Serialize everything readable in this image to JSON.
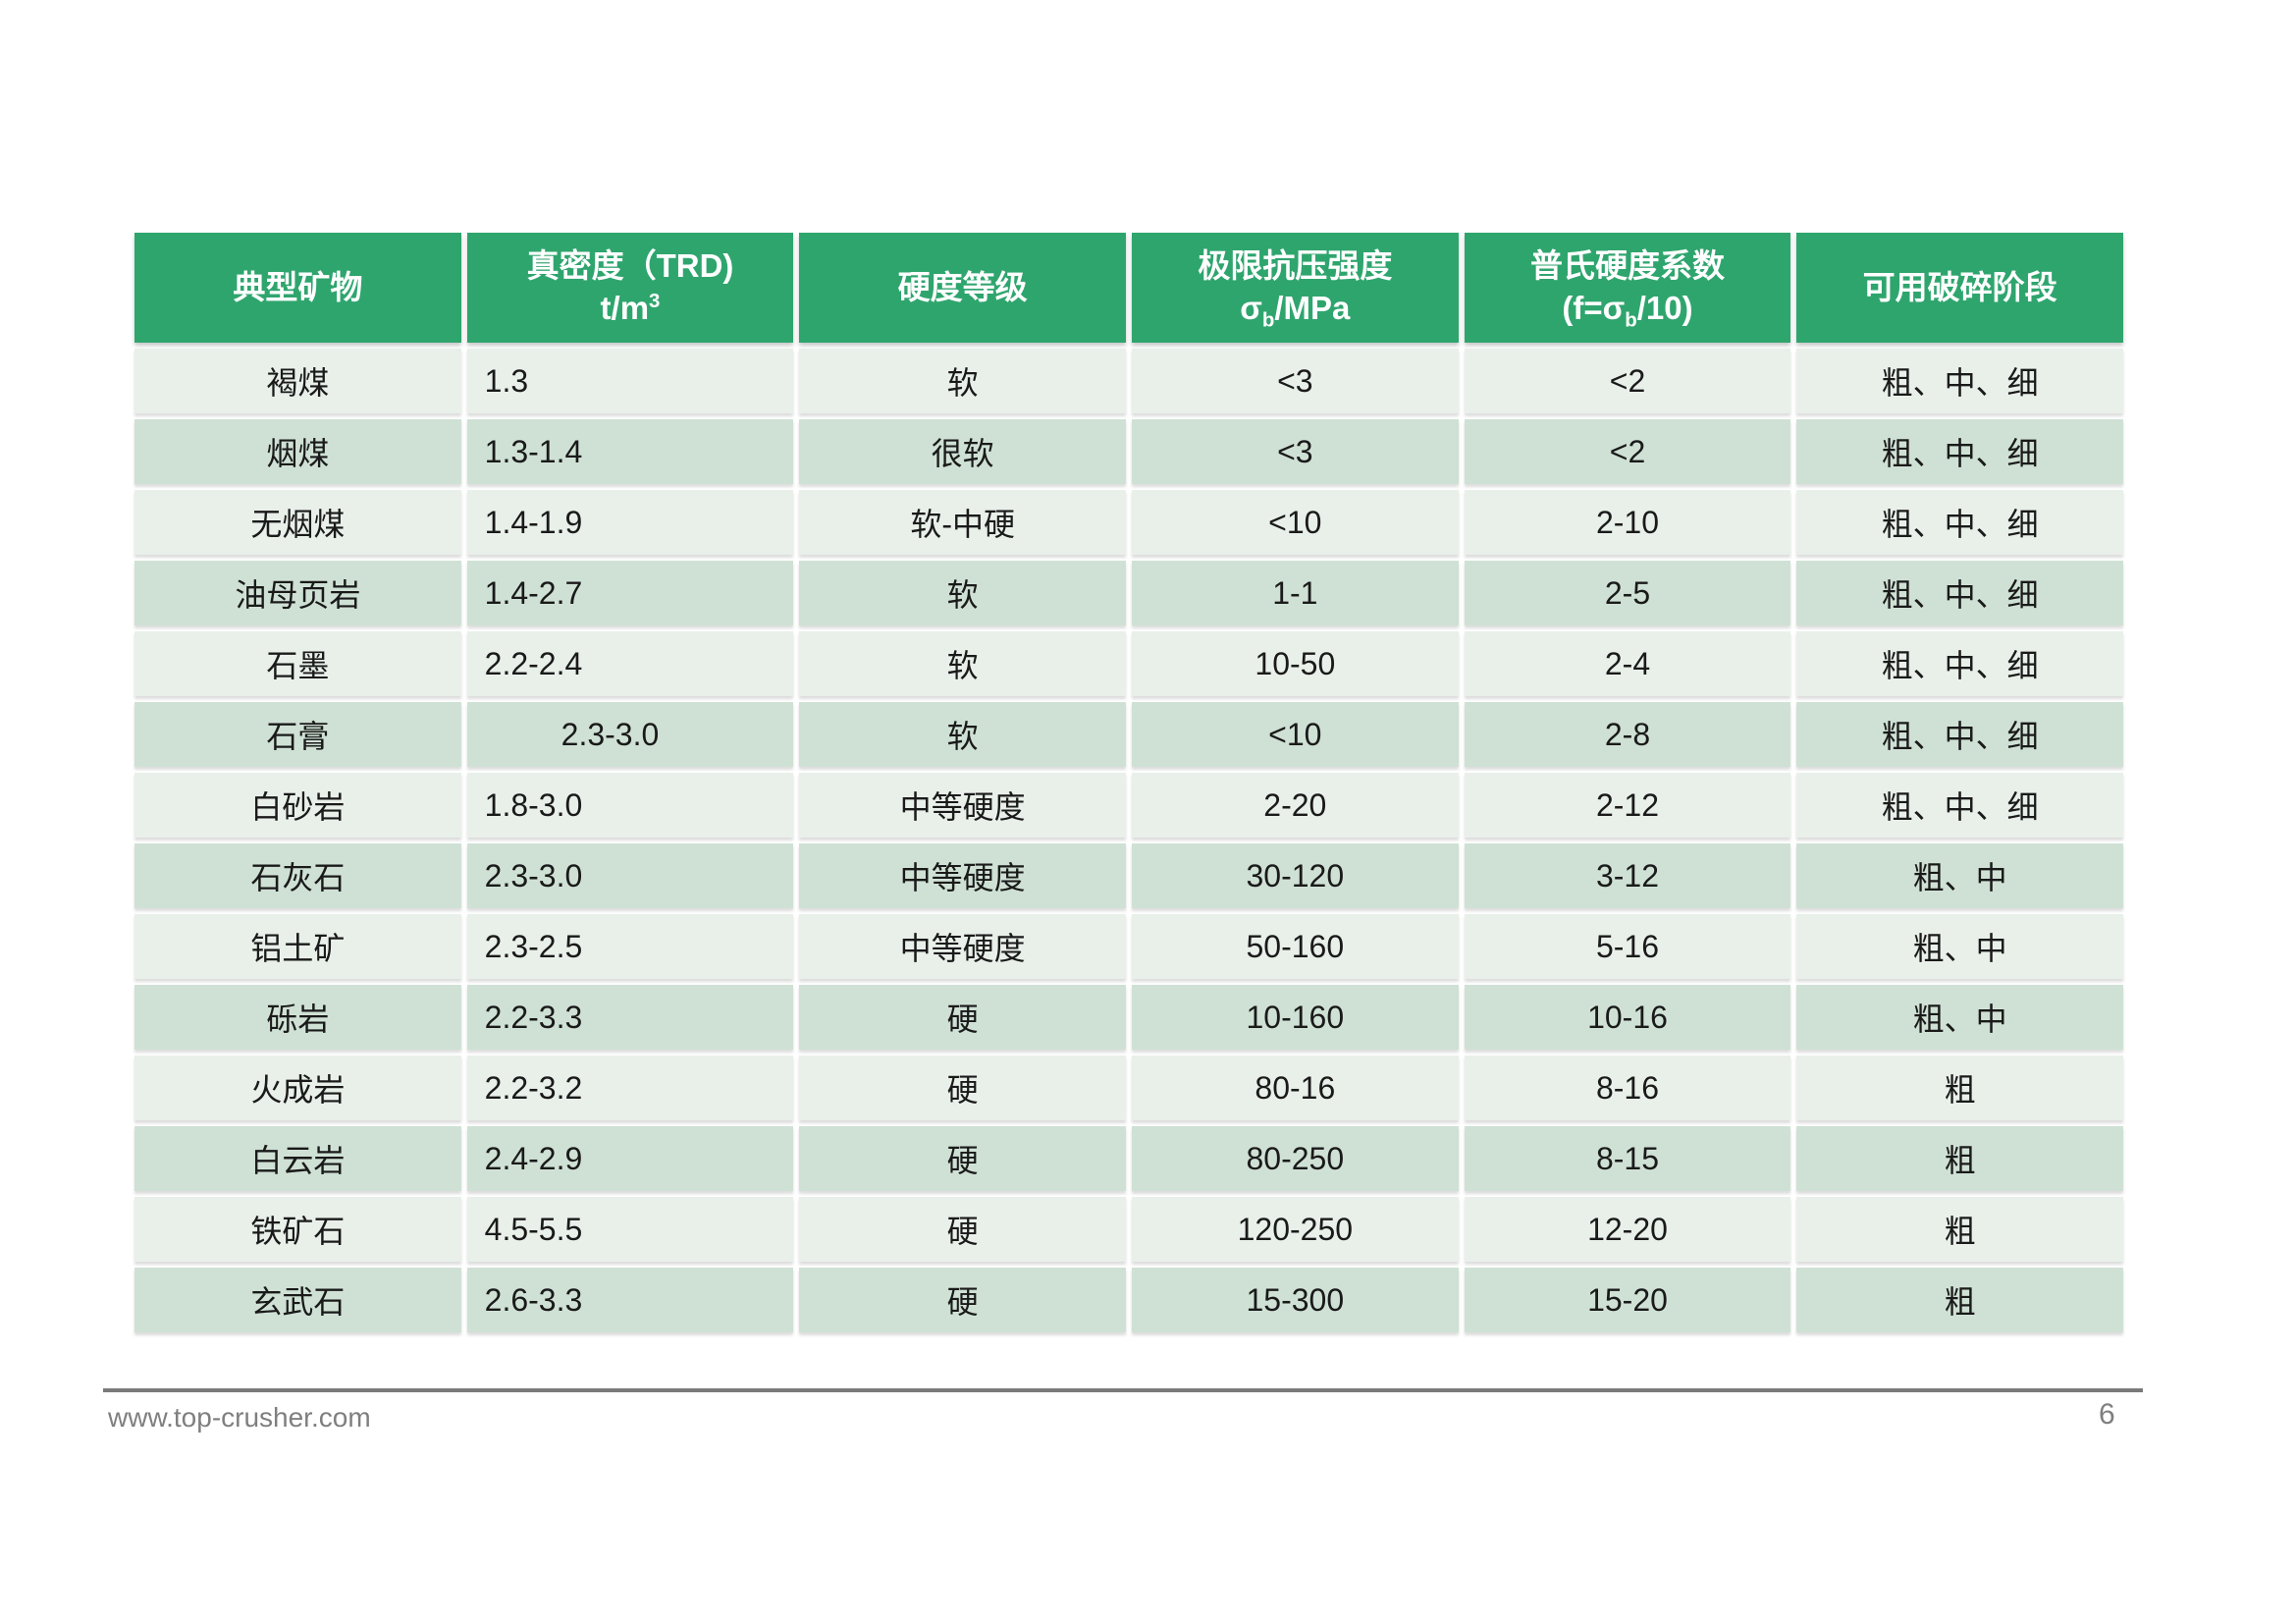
{
  "colors": {
    "header_bg": "#2FA56E",
    "row_dark": "#CFE1D5",
    "row_light": "#E9F0EA",
    "header_text": "#FFFFFF",
    "cell_text": "#1A1A1A",
    "footer_text": "#7F7F7F"
  },
  "footer": {
    "url": "www.top-crusher.com",
    "page_number": "6"
  },
  "table": {
    "header": {
      "col1": "典型矿物",
      "col2_line1": "真密度（TRD)",
      "col2_line2_base": "t/m",
      "col2_line2_sup": "3",
      "col3": "硬度等级",
      "col4_line1": "极限抗压强度",
      "col4_line2_pre": "σ",
      "col4_line2_sub": "b",
      "col4_line2_post": "/MPa",
      "col5_line1": "普氏硬度系数",
      "col5_line2_pre": "(f=σ",
      "col5_line2_sub": "b",
      "col5_line2_post": "/10)",
      "col6": "可用破碎阶段"
    },
    "rows": [
      {
        "mineral": "褐煤",
        "density": "1.3",
        "hardness": "软",
        "strength": "<3",
        "coefficient": "<2",
        "stages": "粗、中、细"
      },
      {
        "mineral": "烟煤",
        "density": "1.3-1.4",
        "hardness": "很软",
        "strength": "<3",
        "coefficient": "<2",
        "stages": "粗、中、细"
      },
      {
        "mineral": "无烟煤",
        "density": "1.4-1.9",
        "hardness": "软-中硬",
        "strength": "<10",
        "coefficient": "2-10",
        "stages": "粗、中、细"
      },
      {
        "mineral": "油母页岩",
        "density": "1.4-2.7",
        "hardness": "软",
        "strength": "1-1",
        "coefficient": "2-5",
        "stages": "粗、中、细"
      },
      {
        "mineral": "石墨",
        "density": "2.2-2.4",
        "hardness": "软",
        "strength": "10-50",
        "coefficient": "2-4",
        "stages": "粗、中、细"
      },
      {
        "mineral": "石膏",
        "density": "2.3-3.0",
        "hardness": "软",
        "strength": "<10",
        "coefficient": "2-8",
        "stages": "粗、中、细"
      },
      {
        "mineral": "白砂岩",
        "density": "1.8-3.0",
        "hardness": "中等硬度",
        "strength": "2-20",
        "coefficient": "2-12",
        "stages": "粗、中、细"
      },
      {
        "mineral": "石灰石",
        "density": "2.3-3.0",
        "hardness": "中等硬度",
        "strength": "30-120",
        "coefficient": "3-12",
        "stages": "粗、中"
      },
      {
        "mineral": "铝土矿",
        "density": "2.3-2.5",
        "hardness": "中等硬度",
        "strength": "50-160",
        "coefficient": "5-16",
        "stages": "粗、中"
      },
      {
        "mineral": "砾岩",
        "density": "2.2-3.3",
        "hardness": "硬",
        "strength": "10-160",
        "coefficient": "10-16",
        "stages": "粗、中"
      },
      {
        "mineral": "火成岩",
        "density": "2.2-3.2",
        "hardness": "硬",
        "strength": "80-16",
        "coefficient": "8-16",
        "stages": "粗"
      },
      {
        "mineral": "白云岩",
        "density": "2.4-2.9",
        "hardness": "硬",
        "strength": "80-250",
        "coefficient": "8-15",
        "stages": "粗"
      },
      {
        "mineral": "铁矿石",
        "density": "4.5-5.5",
        "hardness": "硬",
        "strength": "120-250",
        "coefficient": "12-20",
        "stages": "粗"
      },
      {
        "mineral": "玄武石",
        "density": "2.6-3.3",
        "hardness": "硬",
        "strength": "15-300",
        "coefficient": "15-20",
        "stages": "粗"
      }
    ]
  }
}
